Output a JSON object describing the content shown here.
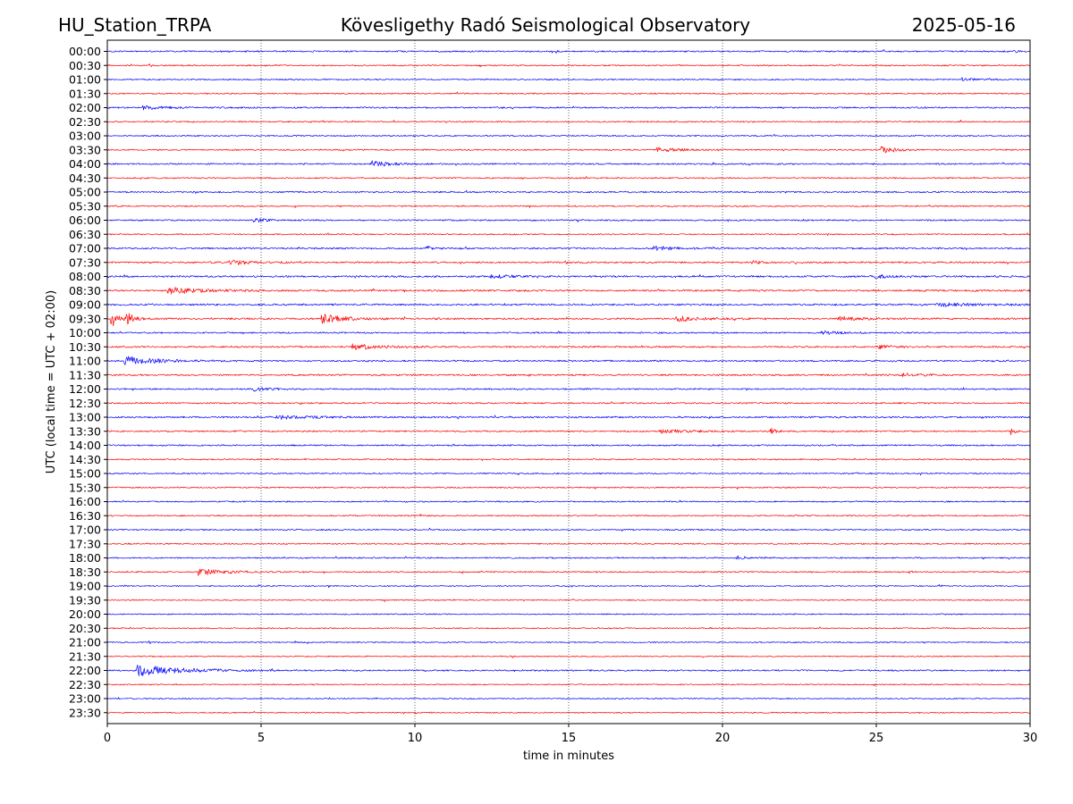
{
  "header": {
    "station": "HU_Station_TRPA",
    "observatory": "Kövesligethy Radó Seismological Observatory",
    "date": "2025-05-16"
  },
  "chart_data": {
    "type": "line",
    "title": "Kövesligethy Radó Seismological Observatory",
    "xlabel": "time in minutes",
    "ylabel": "UTC (local time = UTC + 02:00)",
    "xlim": [
      0,
      30
    ],
    "x_ticks": [
      0,
      5,
      10,
      15,
      20,
      25,
      30
    ],
    "grid": "vertical dotted lines at 5, 10, 15, 20, 25",
    "colors": {
      "even_rows": "#0000ff",
      "odd_rows": "#ff0000",
      "grid": "#000000"
    },
    "rows": [
      "00:00",
      "00:30",
      "01:00",
      "01:30",
      "02:00",
      "02:30",
      "03:00",
      "03:30",
      "04:00",
      "04:30",
      "05:00",
      "05:30",
      "06:00",
      "06:30",
      "07:00",
      "07:30",
      "08:00",
      "08:30",
      "09:00",
      "09:30",
      "10:00",
      "10:30",
      "11:00",
      "11:30",
      "12:00",
      "12:30",
      "13:00",
      "13:30",
      "14:00",
      "14:30",
      "15:00",
      "15:30",
      "16:00",
      "16:30",
      "17:00",
      "17:30",
      "18:00",
      "18:30",
      "19:00",
      "19:30",
      "20:00",
      "20:30",
      "21:00",
      "21:30",
      "22:00",
      "22:30",
      "23:00",
      "23:30"
    ],
    "noise_level": [
      0.9,
      0.8,
      0.8,
      0.8,
      0.9,
      0.8,
      0.8,
      0.8,
      0.9,
      0.8,
      0.9,
      0.8,
      0.9,
      0.8,
      1.0,
      1.0,
      1.1,
      1.1,
      1.1,
      1.1,
      0.9,
      1.0,
      1.0,
      1.0,
      0.9,
      0.9,
      1.0,
      0.9,
      0.9,
      0.8,
      0.8,
      0.8,
      0.8,
      0.8,
      0.8,
      0.8,
      0.8,
      0.8,
      0.7,
      0.7,
      0.7,
      0.7,
      0.7,
      0.7,
      0.9,
      0.7,
      0.7,
      0.7
    ],
    "events": [
      {
        "row": "00:00",
        "minute": 29.5,
        "amplitude": 1.5,
        "duration": 0.2
      },
      {
        "row": "01:00",
        "minute": 27.8,
        "amplitude": 1.5,
        "duration": 1.0
      },
      {
        "row": "02:00",
        "minute": 1.2,
        "amplitude": 1.8,
        "duration": 1.5
      },
      {
        "row": "03:30",
        "minute": 17.9,
        "amplitude": 2.5,
        "duration": 1.5
      },
      {
        "row": "03:30",
        "minute": 25.2,
        "amplitude": 3.5,
        "duration": 1.2
      },
      {
        "row": "04:00",
        "minute": 8.6,
        "amplitude": 3.0,
        "duration": 1.5
      },
      {
        "row": "06:00",
        "minute": 4.8,
        "amplitude": 2.0,
        "duration": 1.0
      },
      {
        "row": "07:00",
        "minute": 10.4,
        "amplitude": 2.0,
        "duration": 0.4
      },
      {
        "row": "07:00",
        "minute": 17.8,
        "amplitude": 2.0,
        "duration": 1.5
      },
      {
        "row": "07:30",
        "minute": 4.0,
        "amplitude": 2.5,
        "duration": 1.5
      },
      {
        "row": "07:30",
        "minute": 21.0,
        "amplitude": 2.5,
        "duration": 0.5
      },
      {
        "row": "08:00",
        "minute": 12.5,
        "amplitude": 2.0,
        "duration": 1.2
      },
      {
        "row": "08:00",
        "minute": 25.0,
        "amplitude": 2.0,
        "duration": 1.2
      },
      {
        "row": "08:30",
        "minute": 2.0,
        "amplitude": 3.5,
        "duration": 2.5
      },
      {
        "row": "09:00",
        "minute": 27.0,
        "amplitude": 1.8,
        "duration": 3.0
      },
      {
        "row": "09:30",
        "minute": 0.15,
        "amplitude": 8.5,
        "duration": 0.5
      },
      {
        "row": "09:30",
        "minute": 0.65,
        "amplitude": 6.0,
        "duration": 0.5
      },
      {
        "row": "09:30",
        "minute": 7.0,
        "amplitude": 5.0,
        "duration": 1.5
      },
      {
        "row": "09:30",
        "minute": 18.5,
        "amplitude": 2.5,
        "duration": 2.0
      },
      {
        "row": "09:30",
        "minute": 23.8,
        "amplitude": 2.5,
        "duration": 1.2
      },
      {
        "row": "10:00",
        "minute": 23.2,
        "amplitude": 2.0,
        "duration": 1.2
      },
      {
        "row": "10:30",
        "minute": 8.0,
        "amplitude": 3.0,
        "duration": 1.8
      },
      {
        "row": "10:30",
        "minute": 25.0,
        "amplitude": 2.0,
        "duration": 1.2
      },
      {
        "row": "11:00",
        "minute": 0.6,
        "amplitude": 5.0,
        "duration": 2.0
      },
      {
        "row": "11:30",
        "minute": 25.8,
        "amplitude": 2.5,
        "duration": 1.2
      },
      {
        "row": "12:00",
        "minute": 4.8,
        "amplitude": 2.0,
        "duration": 1.0
      },
      {
        "row": "13:00",
        "minute": 5.5,
        "amplitude": 2.0,
        "duration": 2.5
      },
      {
        "row": "13:30",
        "minute": 18.0,
        "amplitude": 2.0,
        "duration": 2.5
      },
      {
        "row": "13:30",
        "minute": 21.6,
        "amplitude": 3.5,
        "duration": 0.3
      },
      {
        "row": "13:30",
        "minute": 29.4,
        "amplitude": 3.5,
        "duration": 0.3
      },
      {
        "row": "18:00",
        "minute": 20.5,
        "amplitude": 1.5,
        "duration": 0.8
      },
      {
        "row": "18:30",
        "minute": 3.0,
        "amplitude": 3.5,
        "duration": 2.0
      },
      {
        "row": "22:00",
        "minute": 1.0,
        "amplitude": 6.0,
        "duration": 3.0
      }
    ]
  }
}
